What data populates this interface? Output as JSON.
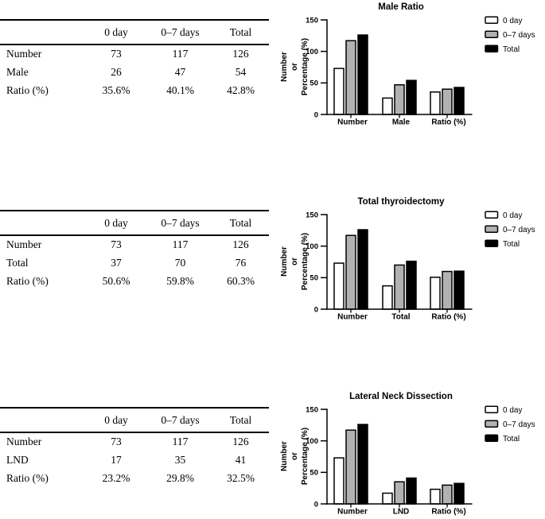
{
  "tables": [
    {
      "columns": [
        "",
        "0 day",
        "0–7 days",
        "Total"
      ],
      "rows": [
        {
          "label": "Number",
          "values": [
            "73",
            "117",
            "126"
          ]
        },
        {
          "label": "Male",
          "values": [
            "26",
            "47",
            "54"
          ]
        },
        {
          "label": "Ratio (%)",
          "values": [
            "35.6%",
            "40.1%",
            "42.8%"
          ]
        }
      ]
    },
    {
      "columns": [
        "",
        "0 day",
        "0–7 days",
        "Total"
      ],
      "rows": [
        {
          "label": "Number",
          "values": [
            "73",
            "117",
            "126"
          ]
        },
        {
          "label": "Total",
          "values": [
            "37",
            "70",
            "76"
          ]
        },
        {
          "label": "Ratio (%)",
          "values": [
            "50.6%",
            "59.8%",
            "60.3%"
          ]
        }
      ]
    },
    {
      "columns": [
        "",
        "0 day",
        "0–7 days",
        "Total"
      ],
      "rows": [
        {
          "label": "Number",
          "values": [
            "73",
            "117",
            "126"
          ]
        },
        {
          "label": "LND",
          "values": [
            "17",
            "35",
            "41"
          ]
        },
        {
          "label": "Ratio (%)",
          "values": [
            "23.2%",
            "29.8%",
            "32.5%"
          ]
        }
      ]
    }
  ],
  "chart_data": [
    {
      "type": "bar",
      "title": "Male Ratio",
      "ylabel": "Number or Percentage (%)",
      "ylabel_lines": [
        "Number",
        "or",
        "Percentage (%)"
      ],
      "categories": [
        "Number",
        "Male",
        "Ratio (%)"
      ],
      "series": [
        {
          "name": "0 day",
          "color": "#ffffff",
          "values": [
            73,
            26,
            35.6
          ]
        },
        {
          "name": "0–7 days",
          "color": "#b2b2b2",
          "values": [
            117,
            47,
            40.1
          ]
        },
        {
          "name": "Total",
          "color": "#000000",
          "values": [
            126,
            54,
            42.8
          ]
        }
      ],
      "ylim": [
        0,
        150
      ],
      "yticks": [
        0,
        50,
        100,
        150
      ],
      "grid": false,
      "legend_position": "right",
      "bar_edge_color": "#000000"
    },
    {
      "type": "bar",
      "title": "Total thyroidectomy",
      "ylabel": "Number or Percentage (%)",
      "ylabel_lines": [
        "Number",
        "or",
        "Percentage (%)"
      ],
      "categories": [
        "Number",
        "Total",
        "Ratio (%)"
      ],
      "series": [
        {
          "name": "0 day",
          "color": "#ffffff",
          "values": [
            73,
            37,
            50.6
          ]
        },
        {
          "name": "0–7 days",
          "color": "#b2b2b2",
          "values": [
            117,
            70,
            59.8
          ]
        },
        {
          "name": "Total",
          "color": "#000000",
          "values": [
            126,
            76,
            60.3
          ]
        }
      ],
      "ylim": [
        0,
        150
      ],
      "yticks": [
        0,
        50,
        100,
        150
      ],
      "grid": false,
      "legend_position": "right",
      "bar_edge_color": "#000000"
    },
    {
      "type": "bar",
      "title": "Lateral  Neck Dissection",
      "ylabel": "Number or Percentage (%)",
      "ylabel_lines": [
        "Number",
        "or",
        "Percentage (%)"
      ],
      "categories": [
        "Number",
        "LND",
        "Ratio (%)"
      ],
      "series": [
        {
          "name": "0 day",
          "color": "#ffffff",
          "values": [
            73,
            17,
            23.2
          ]
        },
        {
          "name": "0–7 days",
          "color": "#b2b2b2",
          "values": [
            117,
            35,
            29.8
          ]
        },
        {
          "name": "Total",
          "color": "#000000",
          "values": [
            126,
            41,
            32.5
          ]
        }
      ],
      "ylim": [
        0,
        150
      ],
      "yticks": [
        0,
        50,
        100,
        150
      ],
      "grid": false,
      "legend_position": "right",
      "bar_edge_color": "#000000"
    }
  ]
}
